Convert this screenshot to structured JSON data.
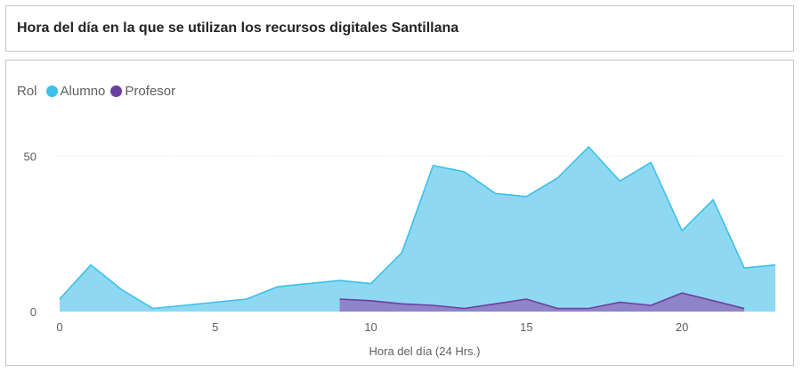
{
  "title": "Hora del día en la que se utilizan los recursos digitales Santillana",
  "legend": {
    "title": "Rol",
    "items": [
      {
        "label": "Alumno",
        "color": "#3bc0ea"
      },
      {
        "label": "Profesor",
        "color": "#6b3fa0"
      }
    ]
  },
  "chart_data": {
    "type": "area",
    "x": [
      0,
      1,
      2,
      3,
      4,
      5,
      6,
      7,
      8,
      9,
      10,
      11,
      12,
      13,
      14,
      15,
      16,
      17,
      18,
      19,
      20,
      21,
      22,
      23
    ],
    "series": [
      {
        "name": "Alumno",
        "color": "#3bc0ea",
        "fill": "#8fd8f2",
        "values": [
          4,
          15,
          7,
          1,
          2,
          3,
          4,
          8,
          9,
          10,
          9,
          19,
          47,
          45,
          38,
          37,
          43,
          53,
          42,
          48,
          26,
          36,
          14,
          15
        ]
      },
      {
        "name": "Profesor",
        "color": "#6b3fa0",
        "fill": "#8f7ec6",
        "values": [
          null,
          null,
          null,
          null,
          null,
          null,
          null,
          null,
          null,
          4,
          3.5,
          2.5,
          2,
          1,
          2.5,
          4,
          1,
          1,
          3,
          2,
          6,
          3.5,
          1,
          null
        ]
      }
    ],
    "xlabel": "Hora del día (24 Hrs.)",
    "ylabel": "",
    "xlim": [
      0,
      23
    ],
    "ylim": [
      0,
      55
    ],
    "xticks": [
      0,
      5,
      10,
      15,
      20
    ],
    "yticks": [
      0,
      50
    ],
    "grid": true,
    "legend_position": "top-left"
  }
}
